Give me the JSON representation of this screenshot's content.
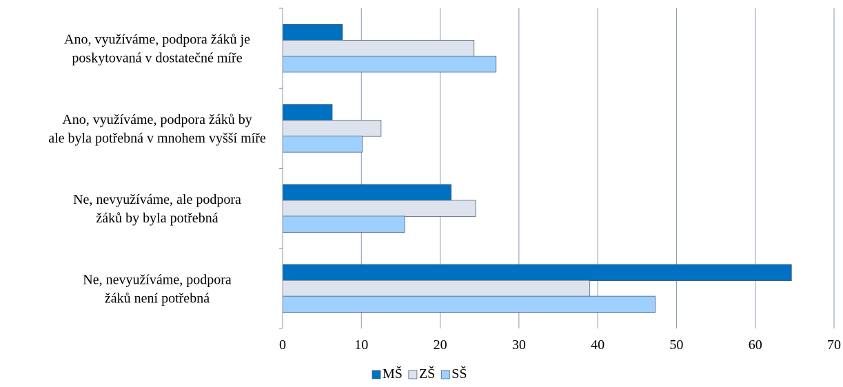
{
  "chart_data": {
    "type": "bar",
    "orientation": "horizontal",
    "categories": [
      [
        "Ano, využíváme, podpora žáků je",
        "poskytovaná v dostatečné míře"
      ],
      [
        "Ano, využíváme, podpora žáků by",
        "ale byla potřebná v mnohem vyšší míře"
      ],
      [
        "Ne, nevyužíváme, ale podpora",
        "žáků by byla potřebná"
      ],
      [
        "Ne, nevyužíváme, podpora",
        "žáků není potřebná"
      ]
    ],
    "series": [
      {
        "name": "MŠ",
        "color": "#0070c0",
        "values": [
          7.6,
          6.3,
          21.4,
          64.6
        ]
      },
      {
        "name": "ZŠ",
        "color": "#dce3ec",
        "values": [
          24.3,
          12.5,
          24.5,
          39.0
        ]
      },
      {
        "name": "SŠ",
        "color": "#9dcfff",
        "values": [
          27.1,
          10.1,
          15.5,
          47.3
        ]
      }
    ],
    "xlim": [
      0,
      70
    ],
    "xticks": [
      "0",
      "10",
      "20",
      "30",
      "40",
      "50",
      "60",
      "70"
    ],
    "grid": "vertical",
    "legend": "bottom",
    "gridline_color": "#8597b0",
    "bar_border_color": "#4a5e78",
    "title": "",
    "xlabel": "",
    "ylabel": ""
  }
}
